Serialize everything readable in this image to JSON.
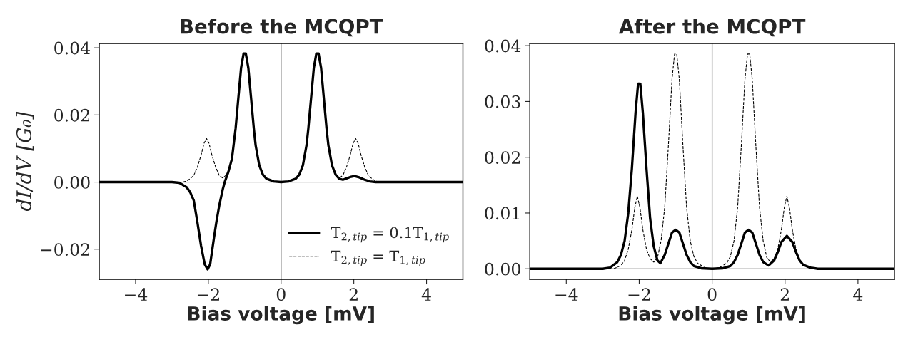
{
  "chart_data": [
    {
      "type": "line",
      "title": "Before the MCQPT",
      "xlabel": "Bias voltage [mV]",
      "ylabel": "dI/dV [G₀]",
      "xlim": [
        -5,
        5
      ],
      "ylim": [
        -0.029,
        0.0413
      ],
      "xticks": [
        -4,
        -2,
        0,
        2,
        4
      ],
      "yticks": [
        -0.02,
        {
          "value": 0,
          "label": "0.00"
        },
        0.02,
        0.04
      ],
      "grid": false,
      "legend": "bottom right",
      "ref_lines": [
        {
          "axis": "y",
          "value": 0,
          "color": "#aaaaaa"
        },
        {
          "axis": "x",
          "value": 0,
          "color": "#555555"
        }
      ],
      "series": [
        {
          "name": "T$_{2,tip}$ = 0.1T$_{1,tip}$",
          "color": "#000000",
          "line_style": "solid",
          "x": [
            -5,
            -3,
            -2.8,
            -2.6,
            -2.5,
            -2.4,
            -2.3,
            -2.2,
            -2.1,
            -2.02,
            -1.95,
            -1.85,
            -1.78,
            -1.7,
            -1.6,
            -1.55,
            -1.45,
            -1.35,
            -1.25,
            -1.2,
            -1.1,
            -1.03,
            -0.97,
            -0.9,
            -0.8,
            -0.75,
            -0.7,
            -0.6,
            -0.5,
            -0.4,
            -0.2,
            0,
            0.2,
            0.4,
            0.5,
            0.6,
            0.7,
            0.75,
            0.8,
            0.9,
            0.97,
            1.03,
            1.1,
            1.2,
            1.25,
            1.3,
            1.4,
            1.5,
            1.6,
            1.7,
            1.8,
            1.9,
            2.02,
            2.15,
            2.3,
            2.45,
            2.6,
            5
          ],
          "values": [
            0,
            0,
            -0.0002,
            -0.0015,
            -0.003,
            -0.0055,
            -0.012,
            -0.019,
            -0.0245,
            -0.026,
            -0.0245,
            -0.017,
            -0.012,
            -0.007,
            -0.002,
            0,
            0.003,
            0.007,
            0.016,
            0.022,
            0.034,
            0.0383,
            0.0383,
            0.034,
            0.022,
            0.016,
            0.011,
            0.005,
            0.0022,
            0.001,
            0.0002,
            0,
            0.0002,
            0.001,
            0.0022,
            0.005,
            0.011,
            0.016,
            0.022,
            0.034,
            0.0383,
            0.0383,
            0.034,
            0.022,
            0.016,
            0.011,
            0.005,
            0.0022,
            0.001,
            0.0007,
            0.0011,
            0.0015,
            0.0018,
            0.0014,
            0.0007,
            0.0002,
            0,
            0
          ]
        },
        {
          "name": "T$_{2,tip}$ = T$_{1,tip}$",
          "color": "#000000",
          "line_style": "dashed",
          "x": [
            -5,
            -2.7,
            -2.6,
            -2.5,
            -2.4,
            -2.3,
            -2.2,
            -2.12,
            -2.05,
            -1.98,
            -1.9,
            -1.8,
            -1.7,
            -1.6,
            -1.5,
            -1.4,
            -1.3,
            -1.25,
            -1.2,
            -1.1,
            -1.03,
            -0.97,
            -0.9,
            -0.8,
            -0.75,
            -0.7,
            -0.6,
            -0.5,
            -0.4,
            -0.2,
            0,
            0.2,
            0.4,
            0.5,
            0.6,
            0.7,
            0.75,
            0.8,
            0.9,
            0.97,
            1.03,
            1.1,
            1.2,
            1.25,
            1.3,
            1.4,
            1.5,
            1.6,
            1.7,
            1.8,
            1.9,
            1.98,
            2.05,
            2.12,
            2.2,
            2.3,
            2.4,
            2.5,
            2.6,
            2.7,
            5
          ],
          "values": [
            0,
            0,
            0.0003,
            0.001,
            0.002,
            0.0045,
            0.008,
            0.0115,
            0.013,
            0.0115,
            0.008,
            0.0045,
            0.002,
            0.0012,
            0.0022,
            0.005,
            0.011,
            0.016,
            0.022,
            0.034,
            0.0383,
            0.0383,
            0.034,
            0.022,
            0.016,
            0.011,
            0.005,
            0.0022,
            0.001,
            0.0002,
            0,
            0.0002,
            0.001,
            0.0022,
            0.005,
            0.011,
            0.016,
            0.022,
            0.034,
            0.0383,
            0.0383,
            0.034,
            0.022,
            0.016,
            0.011,
            0.005,
            0.0022,
            0.0012,
            0.002,
            0.0045,
            0.008,
            0.0115,
            0.013,
            0.0115,
            0.008,
            0.0045,
            0.002,
            0.001,
            0.0003,
            0,
            0
          ]
        }
      ]
    },
    {
      "type": "line",
      "title": "After the MCQPT",
      "xlabel": "Bias voltage [mV]",
      "xlim": [
        -5,
        5
      ],
      "ylim": [
        -0.0019,
        0.0404
      ],
      "xticks": [
        -4,
        -2,
        0,
        2,
        4
      ],
      "yticks": [
        {
          "value": 0,
          "label": "0.00"
        },
        0.01,
        0.02,
        0.03,
        0.04
      ],
      "grid": false,
      "ref_lines": [
        {
          "axis": "y",
          "value": 0,
          "color": "#aaaaaa"
        },
        {
          "axis": "x",
          "value": 0,
          "color": "#555555"
        }
      ],
      "series": [
        {
          "color": "#000000",
          "line_style": "solid",
          "x": [
            -5,
            -3,
            -2.8,
            -2.6,
            -2.5,
            -2.4,
            -2.3,
            -2.2,
            -2.1,
            -2.03,
            -1.97,
            -1.9,
            -1.8,
            -1.7,
            -1.6,
            -1.5,
            -1.42,
            -1.3,
            -1.2,
            -1.1,
            -1.0,
            -0.9,
            -0.8,
            -0.7,
            -0.6,
            -0.5,
            -0.3,
            0,
            0.3,
            0.5,
            0.6,
            0.7,
            0.8,
            0.9,
            1.0,
            1.1,
            1.2,
            1.3,
            1.4,
            1.55,
            1.7,
            1.8,
            1.9,
            2.05,
            2.2,
            2.3,
            2.4,
            2.5,
            2.7,
            2.9,
            5
          ],
          "values": [
            0,
            0,
            0.0002,
            0.0012,
            0.0025,
            0.005,
            0.01,
            0.018,
            0.028,
            0.0332,
            0.0332,
            0.028,
            0.018,
            0.009,
            0.004,
            0.0015,
            0.001,
            0.0025,
            0.0045,
            0.0065,
            0.007,
            0.0065,
            0.0045,
            0.0025,
            0.0012,
            0.0005,
            0.0001,
            0,
            0.0001,
            0.0005,
            0.0012,
            0.0025,
            0.0045,
            0.0065,
            0.007,
            0.0065,
            0.0045,
            0.0025,
            0.0012,
            0.0006,
            0.0015,
            0.003,
            0.0048,
            0.0059,
            0.0048,
            0.003,
            0.0015,
            0.0007,
            0.0002,
            0,
            0
          ]
        },
        {
          "color": "#000000",
          "line_style": "dashed",
          "x": [
            -5,
            -2.7,
            -2.5,
            -2.4,
            -2.3,
            -2.2,
            -2.12,
            -2.05,
            -1.98,
            -1.9,
            -1.8,
            -1.7,
            -1.6,
            -1.5,
            -1.4,
            -1.3,
            -1.2,
            -1.1,
            -1.03,
            -0.97,
            -0.9,
            -0.8,
            -0.7,
            -0.6,
            -0.5,
            -0.4,
            -0.2,
            0,
            0.2,
            0.4,
            0.5,
            0.6,
            0.7,
            0.8,
            0.9,
            0.97,
            1.03,
            1.1,
            1.2,
            1.3,
            1.4,
            1.5,
            1.6,
            1.7,
            1.8,
            1.9,
            1.98,
            2.05,
            2.12,
            2.2,
            2.3,
            2.4,
            2.5,
            2.7,
            5
          ],
          "values": [
            0,
            0,
            0.0006,
            0.0015,
            0.0035,
            0.007,
            0.011,
            0.013,
            0.011,
            0.007,
            0.0035,
            0.0018,
            0.0012,
            0.002,
            0.005,
            0.011,
            0.022,
            0.034,
            0.0385,
            0.0385,
            0.034,
            0.022,
            0.011,
            0.005,
            0.0022,
            0.001,
            0.0002,
            0,
            0.0002,
            0.001,
            0.0022,
            0.005,
            0.011,
            0.022,
            0.034,
            0.0385,
            0.0385,
            0.034,
            0.022,
            0.011,
            0.005,
            0.002,
            0.0012,
            0.0018,
            0.0035,
            0.007,
            0.011,
            0.013,
            0.011,
            0.007,
            0.0035,
            0.0015,
            0.0006,
            0,
            0
          ]
        }
      ]
    }
  ]
}
